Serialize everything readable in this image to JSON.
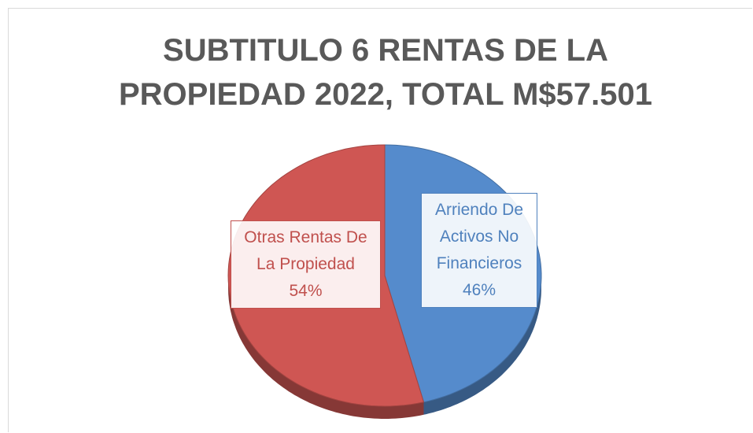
{
  "chart_data": {
    "type": "pie",
    "title": "SUBTITULO 6 RENTAS DE LA PROPIEDAD 2022, TOTAL M$57.501",
    "categories": [
      "Arriendo De Activos No Financieros",
      "Otras Rentas De La Propiedad"
    ],
    "values": [
      46,
      54
    ],
    "value_labels": [
      "46%",
      "54%"
    ],
    "colors": [
      "#4f81bd",
      "#c0504d"
    ]
  }
}
